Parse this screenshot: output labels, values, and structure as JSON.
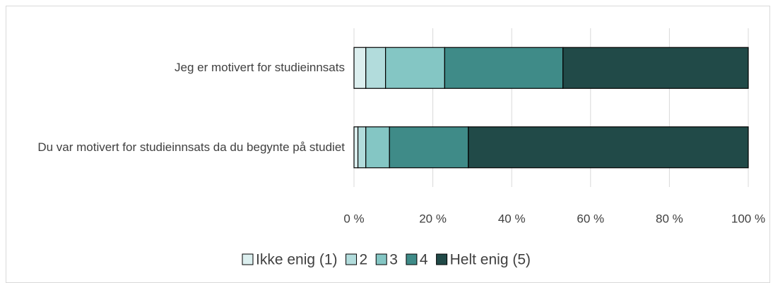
{
  "chart_data": {
    "type": "bar",
    "orientation": "horizontal",
    "stacked": true,
    "categories": [
      "Jeg er motivert for studieinnsats",
      "Du var motivert for studieinnsats da du begynte på studiet"
    ],
    "series": [
      {
        "name": "Ikke enig (1)",
        "color": "#dcefef",
        "values": [
          3,
          1
        ]
      },
      {
        "name": "2",
        "color": "#b2dcdc",
        "values": [
          5,
          2
        ]
      },
      {
        "name": "3",
        "color": "#84c6c4",
        "values": [
          15,
          6
        ]
      },
      {
        "name": "4",
        "color": "#3f8b88",
        "values": [
          30,
          20
        ]
      },
      {
        "name": "Helt enig (5)",
        "color": "#214a48",
        "values": [
          47,
          71
        ]
      }
    ],
    "xlim": [
      0,
      100
    ],
    "xticks": [
      {
        "value": 0,
        "label": "0 %"
      },
      {
        "value": 20,
        "label": "20 %"
      },
      {
        "value": 40,
        "label": "40 %"
      },
      {
        "value": 60,
        "label": "60 %"
      },
      {
        "value": 80,
        "label": "80 %"
      },
      {
        "value": 100,
        "label": "100 %"
      }
    ],
    "grid": true,
    "legend": "bottom"
  }
}
